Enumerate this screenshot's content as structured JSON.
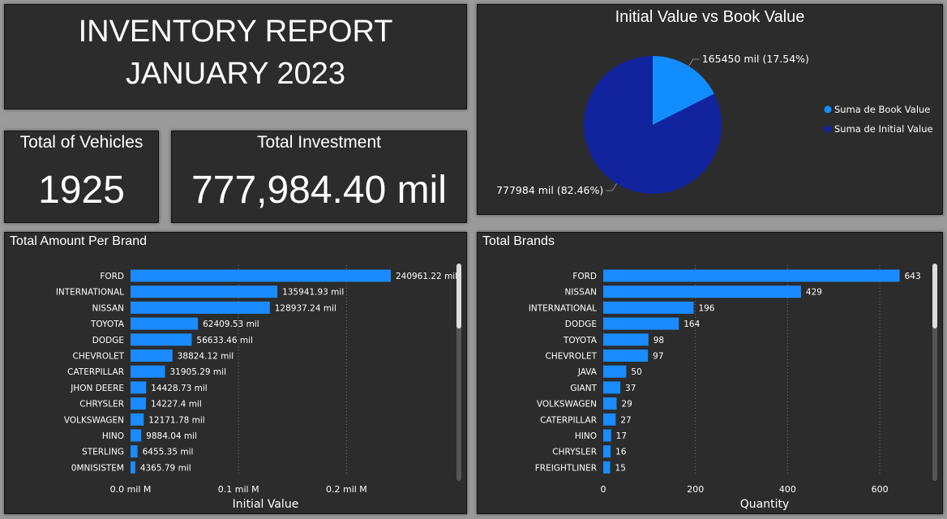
{
  "header": {
    "title_line1": "INVENTORY REPORT",
    "title_line2": "JANUARY 2023"
  },
  "kpis": {
    "vehicles": {
      "label": "Total of Vehicles",
      "value": "1925"
    },
    "investment": {
      "label": "Total Investment",
      "value": "777,984.40 mil"
    }
  },
  "colors": {
    "panel": "#2c2c2c",
    "bar": "#1a8cff",
    "book": "#118dff",
    "initial": "#12239e",
    "text": "#ffffff"
  },
  "chart_data": [
    {
      "type": "pie",
      "title": "Initial Value vs Book Value",
      "labels": [
        "Suma de Book Value",
        "Suma de Initial Value"
      ],
      "values": [
        165450,
        777984
      ],
      "data_labels": [
        "165450 mil (17.54%)",
        "777984 mil (82.46%)"
      ],
      "legend": "right"
    },
    {
      "type": "bar",
      "orientation": "horizontal",
      "title": "Total Amount Per Brand",
      "xlabel": "Initial Value",
      "ylabel": "",
      "categories": [
        "FORD",
        "INTERNATIONAL",
        "NISSAN",
        "TOYOTA",
        "DODGE",
        "CHEVROLET",
        "CATERPILLAR",
        "JHON DEERE",
        "CHRYSLER",
        "VOLKSWAGEN",
        "HINO",
        "STERLING",
        "0MNISISTEM"
      ],
      "values": [
        240961.22,
        135941.93,
        128937.24,
        62409.53,
        56633.46,
        38824.12,
        31905.29,
        14428.73,
        14227.4,
        12171.78,
        9884.04,
        6455.35,
        4365.79
      ],
      "value_labels": [
        "240961.22 mil",
        "135941.93 mil",
        "128937.24 mil",
        "62409.53 mil",
        "56633.46 mil",
        "38824.12 mil",
        "31905.29 mil",
        "14428.73 mil",
        "14227.4 mil",
        "12171.78 mil",
        "9884.04 mil",
        "6455.35 mil",
        "4365.79 mil"
      ],
      "xlim": [
        0,
        250000
      ],
      "ticks": [
        0,
        100000,
        200000
      ],
      "tick_labels": [
        "0.0 mil M",
        "0.1 mil M",
        "0.2 mil M"
      ],
      "grid": true
    },
    {
      "type": "bar",
      "orientation": "horizontal",
      "title": "Total Brands",
      "xlabel": "Quantity",
      "ylabel": "",
      "categories": [
        "FORD",
        "NISSAN",
        "INTERNATIONAL",
        "DODGE",
        "TOYOTA",
        "CHEVROLET",
        "JAVA",
        "GIANT",
        "VOLKSWAGEN",
        "CATERPILLAR",
        "HINO",
        "CHRYSLER",
        "FREIGHTLINER"
      ],
      "values": [
        643,
        429,
        196,
        164,
        98,
        97,
        50,
        37,
        29,
        27,
        17,
        16,
        15
      ],
      "value_labels": [
        "643",
        "429",
        "196",
        "164",
        "98",
        "97",
        "50",
        "37",
        "29",
        "27",
        "17",
        "16",
        "15"
      ],
      "xlim": [
        0,
        700
      ],
      "ticks": [
        0,
        200,
        400,
        600
      ],
      "tick_labels": [
        "0",
        "200",
        "400",
        "600"
      ],
      "grid": true
    }
  ]
}
